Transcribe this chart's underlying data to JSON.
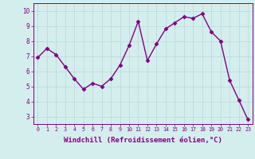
{
  "x": [
    0,
    1,
    2,
    3,
    4,
    5,
    6,
    7,
    8,
    9,
    10,
    11,
    12,
    13,
    14,
    15,
    16,
    17,
    18,
    19,
    20,
    21,
    22,
    23
  ],
  "y": [
    6.9,
    7.5,
    7.1,
    6.3,
    5.5,
    4.8,
    5.2,
    5.0,
    5.5,
    6.4,
    7.7,
    9.3,
    6.7,
    7.8,
    8.8,
    9.2,
    9.6,
    9.5,
    9.8,
    8.6,
    8.0,
    5.4,
    4.1,
    2.8
  ],
  "line_color": "#800080",
  "marker": "D",
  "marker_size": 2.5,
  "linewidth": 1.0,
  "xlabel": "Windchill (Refroidissement éolien,°C)",
  "xlabel_fontsize": 6.5,
  "ytick_values": [
    3,
    4,
    5,
    6,
    7,
    8,
    9,
    10
  ],
  "ytick_labels": [
    "3",
    "4",
    "5",
    "6",
    "7",
    "8",
    "9",
    "10"
  ],
  "ylim": [
    2.5,
    10.5
  ],
  "xlim": [
    -0.5,
    23.5
  ],
  "bg_color": "#d4eeee",
  "grid_color": "#b8d8d8",
  "tick_color": "#800080",
  "label_color": "#800080",
  "spine_color": "#800080"
}
